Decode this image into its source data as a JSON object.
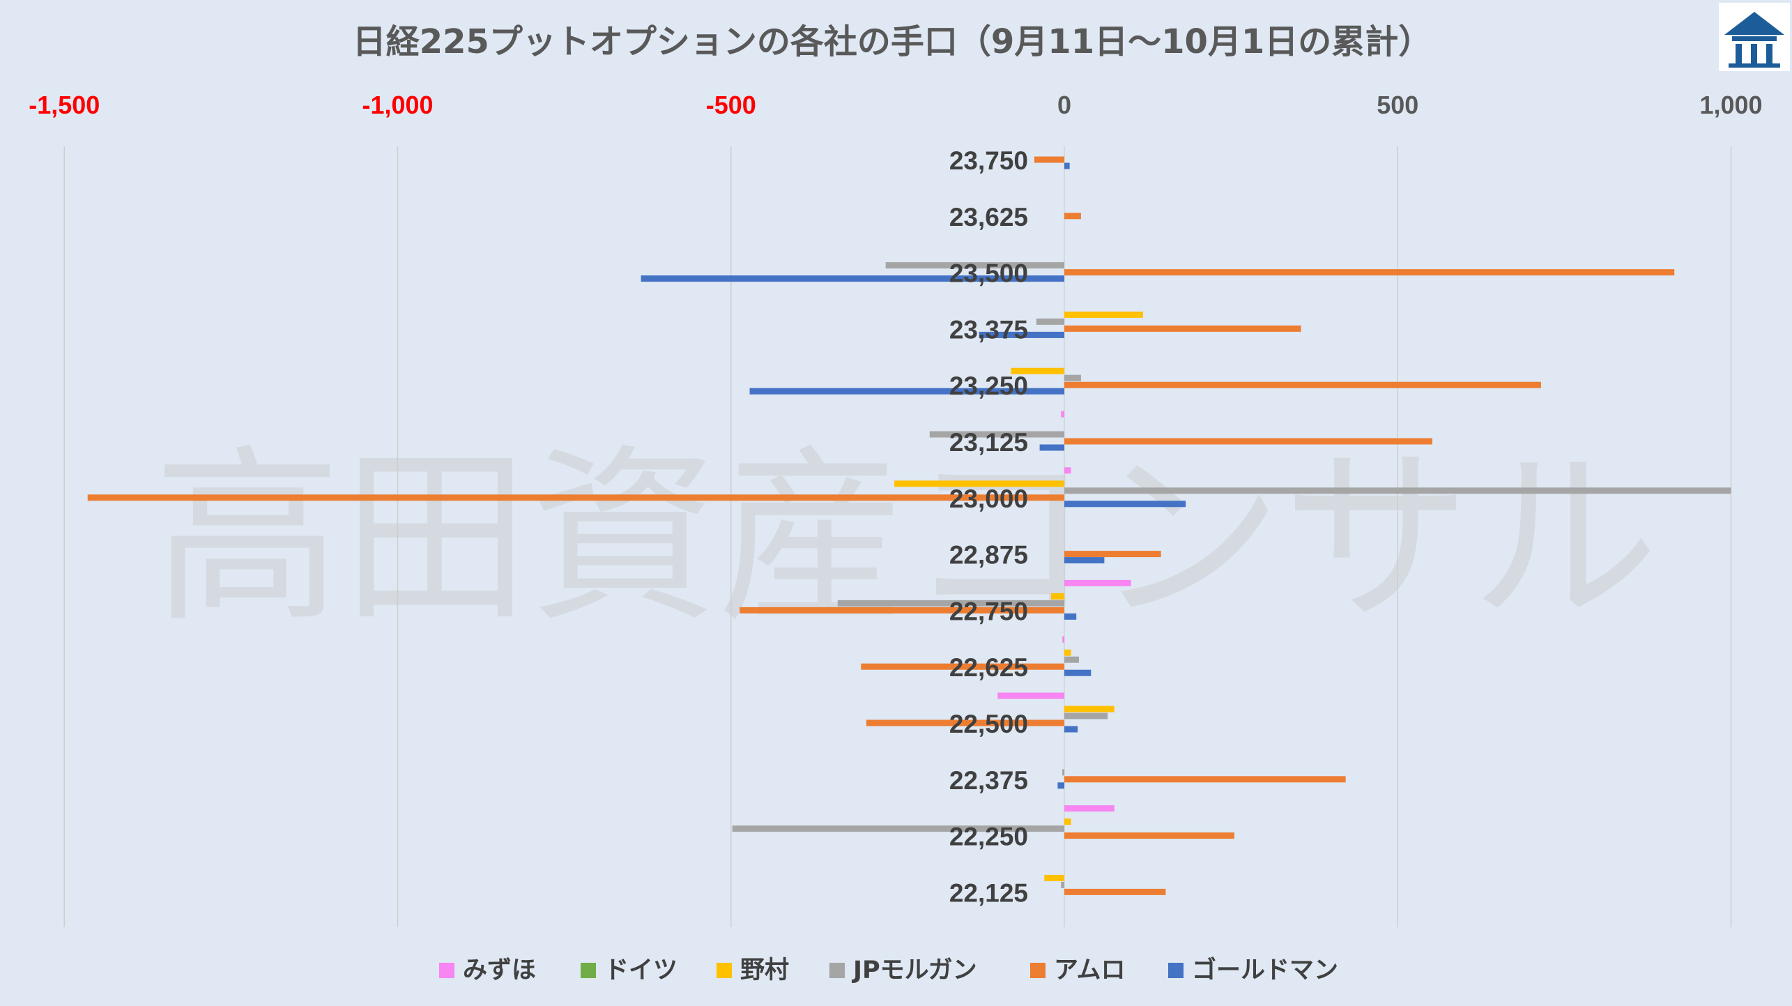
{
  "chart_data": {
    "type": "bar",
    "orientation": "horizontal",
    "title": "日経225プットオプションの各社の手口（9月11日～10月1日の累計）",
    "watermark": "高田資産コンサル",
    "logo": "logo-icon",
    "xlim": [
      -1500,
      1000
    ],
    "x_ticks": [
      -1500,
      -1000,
      -500,
      0,
      500,
      1000
    ],
    "x_tick_labels": [
      "-1,500",
      "-1,000",
      "-500",
      "0",
      "500",
      "1,000"
    ],
    "x_axis_position": "top",
    "negative_tick_color": "#ff0000",
    "positive_tick_color": "#595959",
    "grid": true,
    "legend_position": "bottom",
    "categories": [
      "23,750",
      "23,625",
      "23,500",
      "23,375",
      "23,250",
      "23,125",
      "23,000",
      "22,875",
      "22,750",
      "22,625",
      "22,500",
      "22,375",
      "22,250",
      "22,125"
    ],
    "series": [
      {
        "name": "みずほ",
        "color": "#f785f2",
        "values": [
          0,
          0,
          0,
          0,
          0,
          -5,
          10,
          0,
          100,
          -3,
          -100,
          0,
          75,
          0
        ]
      },
      {
        "name": "ドイツ",
        "color": "#70ad47",
        "values": [
          0,
          0,
          0,
          0,
          0,
          0,
          0,
          0,
          0,
          0,
          0,
          0,
          0,
          0
        ]
      },
      {
        "name": "野村",
        "color": "#ffc000",
        "values": [
          0,
          0,
          0,
          118,
          -80,
          0,
          -255,
          0,
          -20,
          10,
          75,
          0,
          10,
          -30
        ]
      },
      {
        "name": "JPモルガン",
        "color": "#a5a5a5",
        "values": [
          0,
          0,
          -268,
          -42,
          25,
          -202,
          1000,
          0,
          -340,
          22,
          65,
          -3,
          -498,
          -5
        ]
      },
      {
        "name": "アムロ",
        "color": "#ed7d31",
        "values": [
          -45,
          25,
          915,
          355,
          715,
          552,
          -1465,
          145,
          -487,
          -305,
          -297,
          422,
          255,
          152
        ]
      },
      {
        "name": "ゴールドマン",
        "color": "#4472c4",
        "values": [
          8,
          0,
          -635,
          -128,
          -472,
          -37,
          182,
          60,
          18,
          40,
          20,
          -10,
          0,
          0
        ]
      }
    ]
  }
}
